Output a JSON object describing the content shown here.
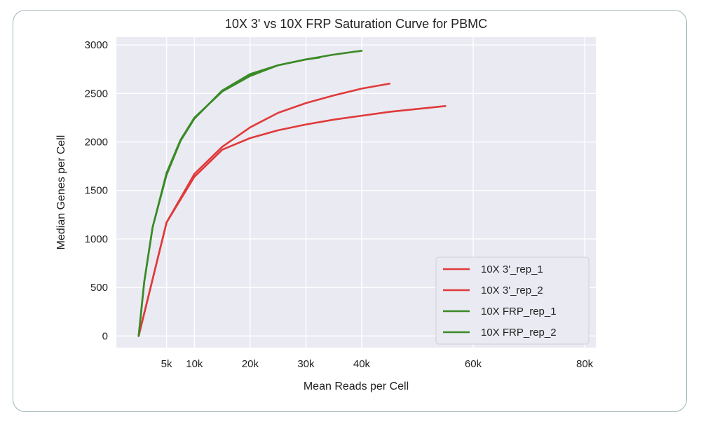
{
  "chart_data": {
    "type": "line",
    "title": "10X 3' vs 10X FRP Saturation Curve for PBMC",
    "xlabel": "Mean Reads per Cell",
    "ylabel": "Median Genes per Cell",
    "xlim": [
      -4000,
      82000
    ],
    "ylim": [
      -120,
      3080
    ],
    "xticks": [
      5000,
      10000,
      20000,
      30000,
      40000,
      60000,
      80000
    ],
    "xtick_labels": [
      "5k",
      "10k",
      "20k",
      "30k",
      "40k",
      "60k",
      "80k"
    ],
    "yticks": [
      0,
      500,
      1000,
      1500,
      2000,
      2500,
      3000
    ],
    "ytick_labels": [
      "0",
      "500",
      "1000",
      "1500",
      "2000",
      "2500",
      "3000"
    ],
    "grid": true,
    "background": "#eaeaf2",
    "legend_position": "bottom-right",
    "series": [
      {
        "name": "10X 3'_rep_1",
        "color": "#e03a3a",
        "x": [
          0,
          5000,
          10000,
          15000,
          20000,
          25000,
          30000,
          35000,
          40000,
          45000,
          50000,
          55000
        ],
        "y": [
          0,
          1170,
          1640,
          1920,
          2040,
          2120,
          2180,
          2230,
          2270,
          2310,
          2340,
          2370
        ]
      },
      {
        "name": "10X 3'_rep_2",
        "color": "#e03a3a",
        "x": [
          0,
          5000,
          10000,
          15000,
          20000,
          25000,
          30000,
          35000,
          40000,
          45000
        ],
        "y": [
          0,
          1170,
          1670,
          1950,
          2150,
          2300,
          2400,
          2480,
          2550,
          2600
        ]
      },
      {
        "name": "10X FRP_rep_1",
        "color": "#3a8a26",
        "x": [
          0,
          1000,
          2500,
          5000,
          7500,
          10000,
          15000,
          20000,
          25000,
          30000,
          35000,
          40000
        ],
        "y": [
          0,
          560,
          1120,
          1680,
          2020,
          2250,
          2520,
          2680,
          2790,
          2850,
          2900,
          2940
        ]
      },
      {
        "name": "10X FRP_rep_2",
        "color": "#3a8a26",
        "x": [
          0,
          1000,
          2500,
          5000,
          7500,
          10000,
          15000,
          20000,
          25000,
          30000,
          32500
        ],
        "y": [
          0,
          560,
          1120,
          1660,
          2010,
          2240,
          2530,
          2700,
          2790,
          2850,
          2870
        ]
      }
    ]
  }
}
